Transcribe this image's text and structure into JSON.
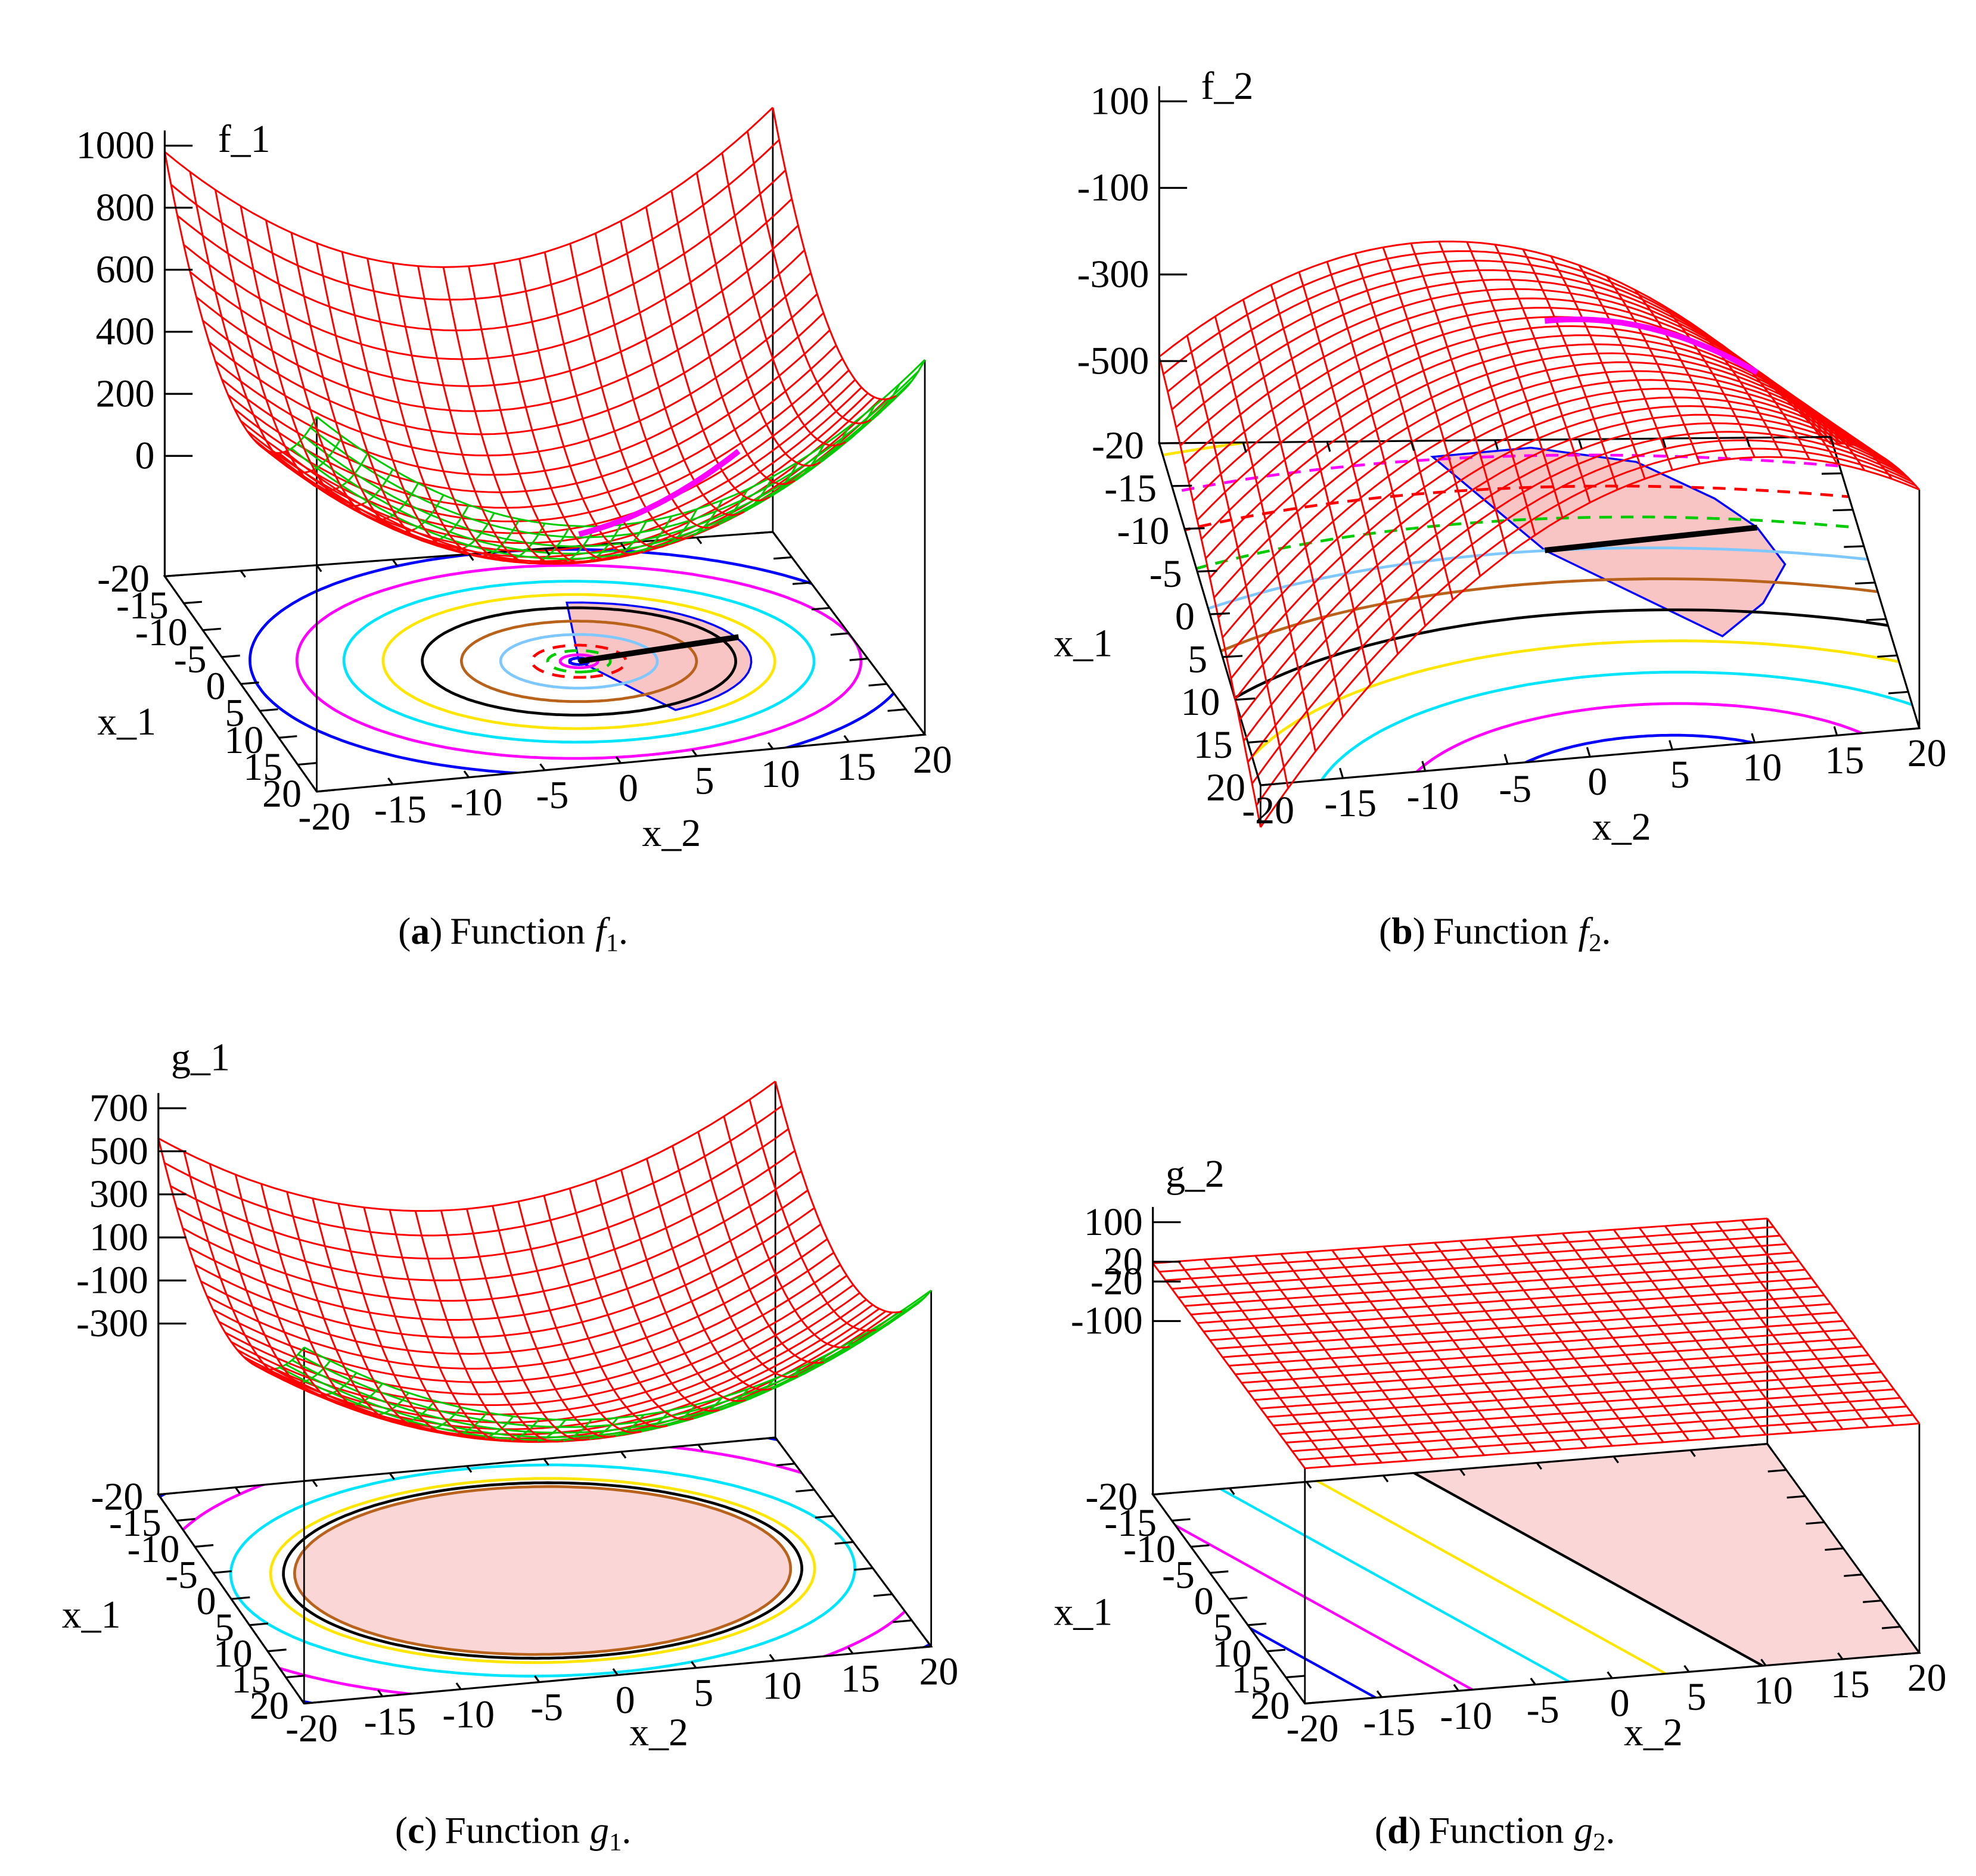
{
  "chart_data": [
    {
      "type": "surface",
      "zlabel": "f_1",
      "xlabel": "x_1",
      "ylabel": "x_2",
      "xlim": [
        -20,
        20
      ],
      "ylim": [
        -20,
        20
      ],
      "zlim": [
        -388,
        1000
      ],
      "zticks": [
        0,
        200,
        400,
        600,
        800,
        1000
      ],
      "xticks": [
        -20,
        -15,
        -10,
        -5,
        0,
        5,
        10,
        15,
        20
      ],
      "yticks": [
        -20,
        -15,
        -10,
        -5,
        0,
        5,
        10,
        15,
        20
      ],
      "caption": [
        "(",
        "a",
        ")",
        "Function",
        "f",
        "1",
        "."
      ]
    },
    {
      "type": "surface",
      "zlabel": "f_2",
      "xlabel": "x_1",
      "ylabel": "x_2",
      "xlim": [
        -20,
        20
      ],
      "ylim": [
        -20,
        20
      ],
      "zlim": [
        -690,
        100
      ],
      "zticks": [
        100,
        -100,
        -300,
        -500
      ],
      "xticks": [
        -20,
        -15,
        -10,
        -5,
        0,
        5,
        10,
        15,
        20
      ],
      "yticks": [
        -20,
        -15,
        -10,
        -5,
        0,
        5,
        10,
        15,
        20
      ],
      "caption": [
        "(",
        "b",
        ")",
        "Function",
        "f",
        "2",
        "."
      ]
    },
    {
      "type": "surface",
      "zlabel": "g_1",
      "xlabel": "x_1",
      "ylabel": "x_2",
      "xlim": [
        -20,
        20
      ],
      "ylim": [
        -20,
        20
      ],
      "zlim": [
        -1094,
        700
      ],
      "zticks": [
        700,
        500,
        300,
        100,
        -100,
        -300
      ],
      "xticks": [
        -20,
        -15,
        -10,
        -5,
        0,
        5,
        10,
        15,
        20
      ],
      "yticks": [
        -20,
        -15,
        -10,
        -5,
        0,
        5,
        10,
        15,
        20
      ],
      "caption": [
        "(",
        "c",
        ")",
        "Function",
        "g",
        "1",
        "."
      ]
    },
    {
      "type": "surface",
      "zlabel": "g_2",
      "xlabel": "x_1",
      "ylabel": "x_2",
      "xlim": [
        -20,
        20
      ],
      "ylim": [
        -20,
        20
      ],
      "zlim": [
        -451,
        100
      ],
      "zticks": [
        100,
        20,
        -20,
        -100
      ],
      "xticks": [
        -20,
        -15,
        -10,
        -5,
        0,
        5,
        10,
        15,
        20
      ],
      "yticks": [
        -20,
        -15,
        -10,
        -5,
        0,
        5,
        10,
        15,
        20
      ],
      "caption": [
        "(",
        "d",
        ")",
        "Function",
        "g",
        "2",
        "."
      ]
    }
  ]
}
